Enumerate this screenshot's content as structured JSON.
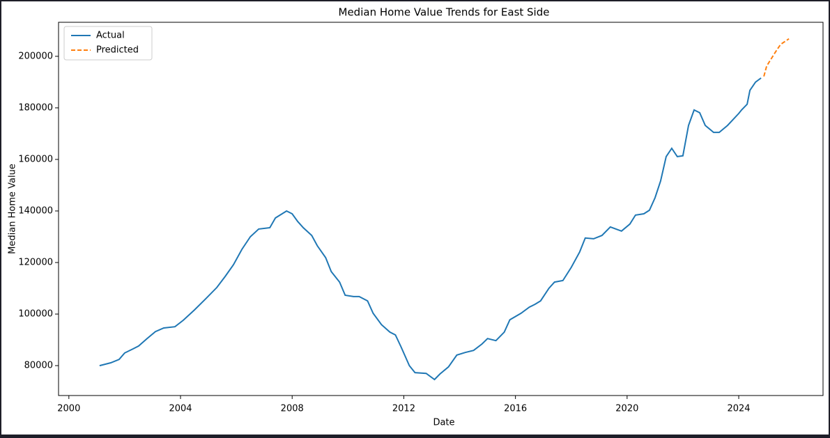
{
  "chart_data": {
    "type": "line",
    "title": "Median Home Value Trends for East Side",
    "x_label": "Date",
    "y_label": "Median Home Value",
    "xlim": [
      1999.63,
      2027.02
    ],
    "ylim": [
      68400,
      213200
    ],
    "xticks": [
      2000,
      2004,
      2008,
      2012,
      2016,
      2020,
      2024
    ],
    "yticks": [
      80000,
      100000,
      120000,
      140000,
      160000,
      180000,
      200000
    ],
    "legend": "upper left",
    "grid": false,
    "series": [
      {
        "name": "Actual",
        "color": "#1f77b4",
        "dash": "solid",
        "x": [
          2001.1,
          2001.5,
          2001.8,
          2002.0,
          2002.3,
          2002.5,
          2002.8,
          2003.1,
          2003.4,
          2003.8,
          2004.1,
          2004.5,
          2004.9,
          2005.3,
          2005.6,
          2005.9,
          2006.2,
          2006.5,
          2006.8,
          2007.2,
          2007.4,
          2007.8,
          2008.0,
          2008.2,
          2008.4,
          2008.7,
          2008.9,
          2009.2,
          2009.4,
          2009.7,
          2009.9,
          2010.2,
          2010.4,
          2010.7,
          2010.9,
          2011.2,
          2011.5,
          2011.7,
          2011.9,
          2012.2,
          2012.4,
          2012.8,
          2013.1,
          2013.3,
          2013.6,
          2013.9,
          2014.2,
          2014.5,
          2014.8,
          2015.0,
          2015.3,
          2015.6,
          2015.8,
          2016.2,
          2016.5,
          2016.7,
          2016.9,
          2017.2,
          2017.4,
          2017.7,
          2018.0,
          2018.3,
          2018.5,
          2018.8,
          2019.1,
          2019.4,
          2019.8,
          2020.1,
          2020.3,
          2020.6,
          2020.8,
          2021.0,
          2021.2,
          2021.4,
          2021.6,
          2021.8,
          2022.0,
          2022.2,
          2022.4,
          2022.6,
          2022.8,
          2023.1,
          2023.3,
          2023.6,
          2024.0,
          2024.1,
          2024.3,
          2024.4,
          2024.6,
          2024.8
        ],
        "values": [
          80000,
          81100,
          82400,
          84900,
          86500,
          87600,
          90500,
          93200,
          94600,
          95100,
          97600,
          101600,
          105900,
          110300,
          114600,
          119200,
          125100,
          130000,
          133000,
          133500,
          137300,
          140000,
          138900,
          135900,
          133500,
          130500,
          126500,
          121900,
          116500,
          112400,
          107300,
          106800,
          106800,
          105100,
          100300,
          95900,
          93000,
          91900,
          87300,
          80000,
          77300,
          77000,
          74600,
          76800,
          79500,
          84100,
          85100,
          85900,
          88400,
          90500,
          89700,
          93000,
          97800,
          100300,
          102700,
          103800,
          105100,
          110000,
          112400,
          113000,
          118100,
          124100,
          129500,
          129200,
          130500,
          133800,
          132200,
          134900,
          138400,
          138900,
          140300,
          145100,
          151600,
          161100,
          164300,
          161100,
          161400,
          173200,
          179200,
          178100,
          173200,
          170500,
          170500,
          173200,
          177800,
          179200,
          181400,
          186800,
          190000,
          191600
        ]
      },
      {
        "name": "Predicted",
        "color": "#ff7f0e",
        "dash": "dashed",
        "x": [
          2024.9,
          2025.0,
          2025.3,
          2025.5,
          2025.8
        ],
        "values": [
          192200,
          196200,
          201400,
          204600,
          206800
        ]
      }
    ]
  }
}
